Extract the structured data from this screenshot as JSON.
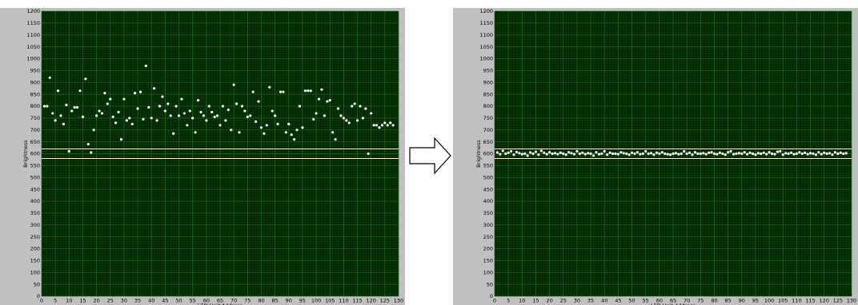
{
  "chart_data": [
    {
      "type": "scatter",
      "xlabel": "LED Unit Address",
      "ylabel": "Brightness",
      "xlim": [
        0,
        130
      ],
      "ylim": [
        0,
        1200
      ],
      "xticks": [
        0,
        5,
        10,
        15,
        20,
        25,
        30,
        35,
        40,
        45,
        50,
        55,
        60,
        65,
        70,
        75,
        80,
        85,
        90,
        95,
        100,
        105,
        110,
        115,
        120,
        125,
        130
      ],
      "yticks": [
        0,
        50,
        100,
        150,
        200,
        250,
        300,
        350,
        400,
        450,
        500,
        550,
        600,
        650,
        700,
        750,
        800,
        850,
        900,
        950,
        1000,
        1050,
        1100,
        1150,
        1200
      ],
      "reference_lines": [
        580,
        620
      ],
      "grid": true,
      "colors": {
        "plot_bg": "#002600",
        "grid": "#1f6a1f",
        "points": "#ffffff",
        "reference": "#ffffc8",
        "frame": "#c0c0c0"
      },
      "x": [
        1,
        2,
        3,
        4,
        5,
        6,
        7,
        8,
        9,
        10,
        11,
        12,
        13,
        14,
        15,
        16,
        17,
        18,
        19,
        20,
        21,
        22,
        23,
        24,
        25,
        26,
        27,
        28,
        29,
        30,
        31,
        32,
        33,
        34,
        35,
        36,
        37,
        38,
        39,
        40,
        41,
        42,
        43,
        44,
        45,
        46,
        47,
        48,
        49,
        50,
        51,
        52,
        53,
        54,
        55,
        56,
        57,
        58,
        59,
        60,
        61,
        62,
        63,
        64,
        65,
        66,
        67,
        68,
        69,
        70,
        71,
        72,
        73,
        74,
        75,
        76,
        77,
        78,
        79,
        80,
        81,
        82,
        83,
        84,
        85,
        86,
        87,
        88,
        89,
        90,
        91,
        92,
        93,
        94,
        95,
        96,
        97,
        98,
        99,
        100,
        101,
        102,
        103,
        104,
        105,
        106,
        107,
        108,
        109,
        110,
        111,
        112,
        113,
        114,
        115,
        116,
        117,
        118,
        119,
        120,
        121,
        122,
        123,
        124,
        125,
        126,
        127,
        128
      ],
      "y": [
        800,
        800,
        920,
        770,
        740,
        865,
        760,
        725,
        805,
        610,
        780,
        795,
        795,
        865,
        755,
        915,
        640,
        605,
        700,
        760,
        780,
        770,
        855,
        810,
        830,
        755,
        730,
        775,
        660,
        830,
        740,
        750,
        725,
        855,
        790,
        860,
        745,
        970,
        795,
        750,
        875,
        740,
        800,
        840,
        780,
        810,
        760,
        685,
        800,
        760,
        830,
        770,
        720,
        780,
        750,
        690,
        825,
        775,
        760,
        740,
        800,
        775,
        755,
        760,
        720,
        800,
        740,
        785,
        700,
        890,
        810,
        690,
        800,
        780,
        755,
        760,
        860,
        735,
        820,
        710,
        685,
        720,
        880,
        780,
        760,
        725,
        860,
        860,
        690,
        725,
        680,
        660,
        700,
        800,
        710,
        865,
        865,
        865,
        745,
        770,
        830,
        870,
        760,
        820,
        825,
        690,
        660,
        790,
        760,
        750,
        740,
        730,
        800,
        810,
        740,
        800,
        750,
        790,
        600,
        770,
        720,
        720,
        710,
        720,
        730,
        720,
        730,
        720
      ]
    },
    {
      "type": "scatter",
      "xlabel": "LED Unit Address",
      "ylabel": "Brightness",
      "xlim": [
        0,
        130
      ],
      "ylim": [
        0,
        1200
      ],
      "xticks": [
        0,
        5,
        10,
        15,
        20,
        25,
        30,
        35,
        40,
        45,
        50,
        55,
        60,
        65,
        70,
        75,
        80,
        85,
        90,
        95,
        100,
        105,
        110,
        115,
        120,
        125,
        130
      ],
      "yticks": [
        0,
        50,
        100,
        150,
        200,
        250,
        300,
        350,
        400,
        450,
        500,
        550,
        600,
        650,
        700,
        750,
        800,
        850,
        900,
        950,
        1000,
        1050,
        1100,
        1150,
        1200
      ],
      "reference_lines": [
        580,
        620
      ],
      "grid": true,
      "colors": {
        "plot_bg": "#002600",
        "grid": "#1f6a1f",
        "points": "#ffffff",
        "reference": "#ffffc8",
        "frame": "#c0c0c0"
      },
      "x": [
        1,
        2,
        3,
        4,
        5,
        6,
        7,
        8,
        9,
        10,
        11,
        12,
        13,
        14,
        15,
        16,
        17,
        18,
        19,
        20,
        21,
        22,
        23,
        24,
        25,
        26,
        27,
        28,
        29,
        30,
        31,
        32,
        33,
        34,
        35,
        36,
        37,
        38,
        39,
        40,
        41,
        42,
        43,
        44,
        45,
        46,
        47,
        48,
        49,
        50,
        51,
        52,
        53,
        54,
        55,
        56,
        57,
        58,
        59,
        60,
        61,
        62,
        63,
        64,
        65,
        66,
        67,
        68,
        69,
        70,
        71,
        72,
        73,
        74,
        75,
        76,
        77,
        78,
        79,
        80,
        81,
        82,
        83,
        84,
        85,
        86,
        87,
        88,
        89,
        90,
        91,
        92,
        93,
        94,
        95,
        96,
        97,
        98,
        99,
        100,
        101,
        102,
        103,
        104,
        105,
        106,
        107,
        108,
        109,
        110,
        111,
        112,
        113,
        114,
        115,
        116,
        117,
        118,
        119,
        120,
        121,
        122,
        123,
        124,
        125,
        126,
        127,
        128
      ],
      "y": [
        605,
        598,
        612,
        600,
        604,
        610,
        596,
        607,
        602,
        598,
        600,
        592,
        605,
        600,
        608,
        596,
        612,
        604,
        598,
        606,
        600,
        602,
        598,
        604,
        600,
        596,
        606,
        602,
        598,
        610,
        600,
        604,
        598,
        602,
        600,
        592,
        606,
        598,
        600,
        610,
        596,
        604,
        600,
        600,
        598,
        606,
        602,
        600,
        596,
        604,
        600,
        606,
        598,
        600,
        610,
        600,
        602,
        596,
        604,
        600,
        606,
        600,
        598,
        596,
        600,
        602,
        598,
        600,
        610,
        600,
        604,
        596,
        606,
        600,
        600,
        602,
        598,
        604,
        606,
        600,
        598,
        604,
        600,
        596,
        606,
        610,
        598,
        600,
        602,
        600,
        606,
        598,
        604,
        600,
        596,
        602,
        600,
        604,
        598,
        606,
        600,
        598,
        608,
        610,
        596,
        602,
        600,
        604,
        598,
        600,
        606,
        600,
        604,
        598,
        602,
        600,
        596,
        606,
        598,
        604,
        600,
        602,
        596,
        606,
        600,
        604,
        600,
        602
      ]
    }
  ]
}
